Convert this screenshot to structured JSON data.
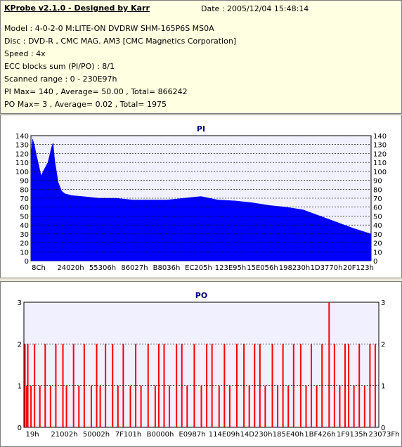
{
  "header": {
    "title": "KProbe v2.1.0 - Designed by Karr",
    "date": "Date : 2005/12/04 15:48:14",
    "lines": [
      "Model : 4-0-2-0 M:LITE-ON DVDRW SHM-165P6S MS0A",
      "Disc : DVD-R , CMC MAG. AM3 [CMC Magnetics Corporation]",
      "Speed : 4x",
      "ECC blocks sum (PI/PO) : 8/1",
      "Scanned range : 0 - 230E97h",
      "PI Max= 140 , Average= 50.00 , Total= 866242",
      "PO Max= 3 , Average= 0.02 , Total= 1975"
    ]
  },
  "colors": {
    "pi_fill": "#0000ff",
    "po_fill": "#ff0000",
    "plot_bg": "#f0f0ff",
    "grid": "#000000"
  },
  "chart_data": [
    {
      "type": "area",
      "title": "PI",
      "xlabel": "",
      "ylabel": "",
      "ylim": [
        0,
        140
      ],
      "y_ticks": [
        0,
        10,
        20,
        30,
        40,
        50,
        60,
        70,
        80,
        90,
        100,
        110,
        120,
        130,
        140
      ],
      "x_tick_labels": [
        "8Ch",
        "24020h",
        "55306h",
        "86027h",
        "B8036h",
        "EC205h",
        "123E95h",
        "15E056h",
        "198230h",
        "1D3770h",
        "20F123h"
      ],
      "grid": true,
      "series": [
        {
          "x": [
            0,
            0.005,
            0.01,
            0.015,
            0.02,
            0.03,
            0.04,
            0.05,
            0.06,
            0.065,
            0.07,
            0.08,
            0.09,
            0.1,
            0.12,
            0.15,
            0.2,
            0.25,
            0.3,
            0.35,
            0.4,
            0.45,
            0.5,
            0.55,
            0.6,
            0.65,
            0.7,
            0.75,
            0.8,
            0.85,
            0.9,
            0.95,
            1.0
          ],
          "values": [
            118,
            136,
            130,
            120,
            112,
            95,
            103,
            110,
            126,
            132,
            112,
            88,
            78,
            75,
            73,
            72,
            70,
            70,
            68,
            68,
            68,
            70,
            72,
            68,
            67,
            65,
            62,
            60,
            57,
            50,
            43,
            36,
            30
          ]
        }
      ]
    },
    {
      "type": "bar",
      "title": "PO",
      "xlabel": "",
      "ylabel": "",
      "ylim": [
        0,
        3
      ],
      "y_ticks": [
        0,
        1,
        2,
        3
      ],
      "x_tick_labels": [
        "19h",
        "21002h",
        "50002h",
        "7F101h",
        "B0000h",
        "E0987h",
        "114E09h",
        "14D230h",
        "185E40h",
        "1BF426h",
        "1F9135h",
        "23073Fh"
      ],
      "grid": true,
      "series": [
        {
          "x": [
            0.003,
            0.008,
            0.011,
            0.02,
            0.03,
            0.045,
            0.06,
            0.075,
            0.09,
            0.11,
            0.12,
            0.14,
            0.155,
            0.17,
            0.19,
            0.205,
            0.215,
            0.23,
            0.25,
            0.265,
            0.28,
            0.3,
            0.315,
            0.33,
            0.35,
            0.37,
            0.38,
            0.395,
            0.41,
            0.43,
            0.445,
            0.46,
            0.48,
            0.5,
            0.515,
            0.53,
            0.55,
            0.565,
            0.58,
            0.6,
            0.62,
            0.635,
            0.65,
            0.665,
            0.68,
            0.7,
            0.715,
            0.73,
            0.745,
            0.76,
            0.78,
            0.795,
            0.81,
            0.825,
            0.84,
            0.86,
            0.875,
            0.89,
            0.905,
            0.915,
            0.93,
            0.945,
            0.96,
            0.975,
            0.99
          ],
          "values": [
            2,
            1,
            2,
            1,
            2,
            1,
            2,
            1,
            2,
            2,
            1,
            2,
            1,
            2,
            1,
            2,
            1,
            2,
            2,
            1,
            2,
            1,
            2,
            1,
            2,
            1,
            2,
            2,
            1,
            2,
            2,
            1,
            2,
            1,
            2,
            2,
            1,
            2,
            1,
            2,
            2,
            1,
            2,
            2,
            1,
            2,
            1,
            2,
            1,
            2,
            2,
            1,
            2,
            1,
            2,
            3,
            2,
            1,
            2,
            2,
            1,
            2,
            1,
            2,
            2
          ]
        }
      ]
    }
  ]
}
